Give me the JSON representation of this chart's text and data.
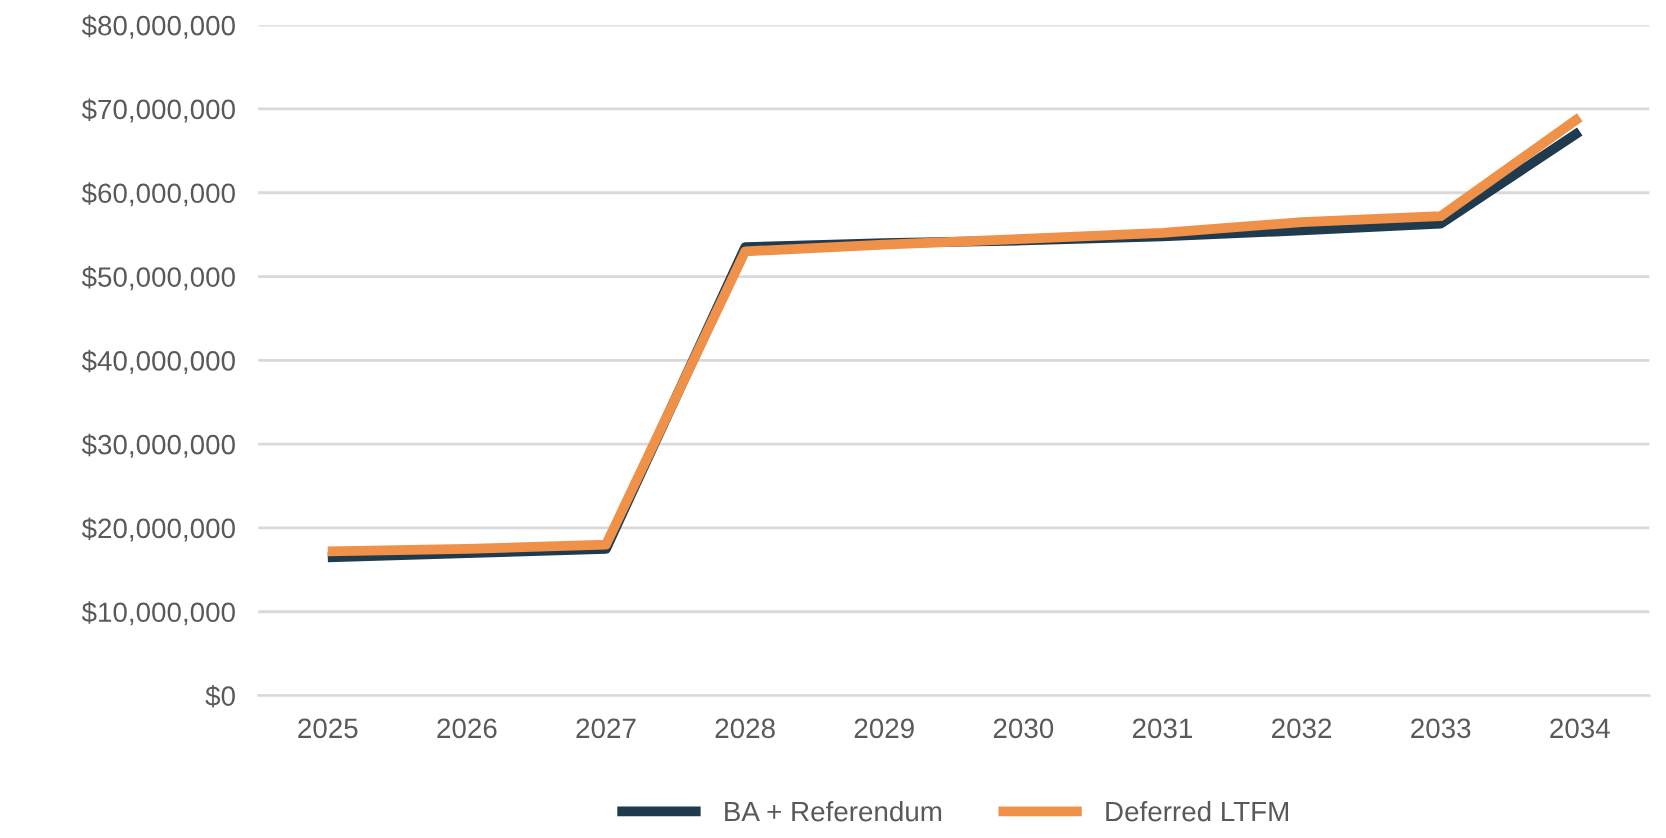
{
  "chart_data": {
    "type": "line",
    "categories": [
      "2025",
      "2026",
      "2027",
      "2028",
      "2029",
      "2030",
      "2031",
      "2032",
      "2033",
      "2034"
    ],
    "series": [
      {
        "name": "BA + Referendum",
        "color": "#1f3b4d",
        "values": [
          16500000,
          17000000,
          17500000,
          53500000,
          54000000,
          54300000,
          54800000,
          55500000,
          56300000,
          67300000
        ]
      },
      {
        "name": "Deferred LTFM",
        "color": "#f0914a",
        "values": [
          17200000,
          17500000,
          18000000,
          53000000,
          53800000,
          54500000,
          55200000,
          56500000,
          57200000,
          69000000
        ]
      }
    ],
    "ylim": [
      0,
      80000000
    ],
    "yticks": [
      {
        "value": 0,
        "label": "$0"
      },
      {
        "value": 10000000,
        "label": "$10,000,000"
      },
      {
        "value": 20000000,
        "label": "$20,000,000"
      },
      {
        "value": 30000000,
        "label": "$30,000,000"
      },
      {
        "value": 40000000,
        "label": "$40,000,000"
      },
      {
        "value": 50000000,
        "label": "$50,000,000"
      },
      {
        "value": 60000000,
        "label": "$60,000,000"
      },
      {
        "value": 70000000,
        "label": "$70,000,000"
      },
      {
        "value": 80000000,
        "label": "$80,000,000"
      }
    ],
    "grid": "y",
    "legend": "bottom",
    "marker": "none",
    "line_style": "solid"
  }
}
